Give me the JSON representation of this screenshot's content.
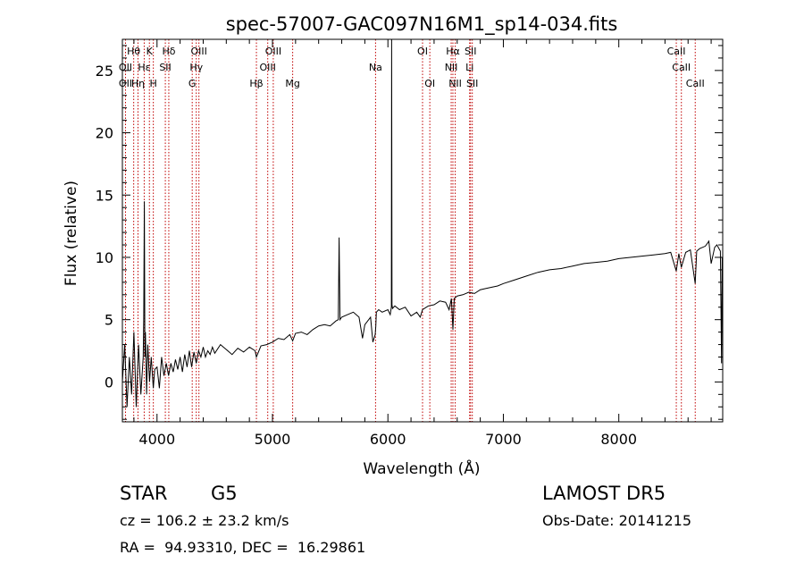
{
  "chart_data": {
    "type": "line",
    "title": "spec-57007-GAC097N16M1_sp14-034.fits",
    "xlabel": "Wavelength (Å)",
    "ylabel": "Flux (relative)",
    "xlim": [
      3700,
      8900
    ],
    "ylim": [
      -3.2,
      27.5
    ],
    "xticks": [
      4000,
      5000,
      6000,
      7000,
      8000
    ],
    "yticks": [
      0,
      5,
      10,
      15,
      20,
      25
    ],
    "grid": false,
    "line_color": "#000000",
    "marker_line_color": "#c00000",
    "lines": [
      {
        "label": "Hθ",
        "x": 3798,
        "row": 0
      },
      {
        "label": "OII",
        "x": 3727,
        "row": 1
      },
      {
        "label": "OII",
        "x": 3727,
        "row": 2
      },
      {
        "label": "Hε",
        "x": 3889,
        "row": 1
      },
      {
        "label": "Hη",
        "x": 3835,
        "row": 2
      },
      {
        "label": "K",
        "x": 3934,
        "row": 0
      },
      {
        "label": "H",
        "x": 3968,
        "row": 2
      },
      {
        "label": "Hδ",
        "x": 4102,
        "row": 0
      },
      {
        "label": "SII",
        "x": 4072,
        "row": 1
      },
      {
        "label": "OIII",
        "x": 4363,
        "row": 0
      },
      {
        "label": "Hγ",
        "x": 4340,
        "row": 1
      },
      {
        "label": "G",
        "x": 4305,
        "row": 2
      },
      {
        "label": "OIII",
        "x": 5007,
        "row": 0
      },
      {
        "label": "OIII",
        "x": 4959,
        "row": 1
      },
      {
        "label": "Hβ",
        "x": 4861,
        "row": 2
      },
      {
        "label": "Mg",
        "x": 5175,
        "row": 2
      },
      {
        "label": "Na",
        "x": 5893,
        "row": 1
      },
      {
        "label": "OI",
        "x": 6300,
        "row": 0
      },
      {
        "label": "OI",
        "x": 6363,
        "row": 2
      },
      {
        "label": "Hα",
        "x": 6563,
        "row": 0
      },
      {
        "label": "NII",
        "x": 6548,
        "row": 1
      },
      {
        "label": "NII",
        "x": 6583,
        "row": 2
      },
      {
        "label": "SII",
        "x": 6716,
        "row": 0
      },
      {
        "label": "Li",
        "x": 6708,
        "row": 1
      },
      {
        "label": "SII",
        "x": 6731,
        "row": 2
      },
      {
        "label": "CaII",
        "x": 8498,
        "row": 0
      },
      {
        "label": "CaII",
        "x": 8542,
        "row": 1
      },
      {
        "label": "CaII",
        "x": 8662,
        "row": 2
      }
    ],
    "series": [
      {
        "x": [
          3700,
          3720,
          3740,
          3760,
          3780,
          3800,
          3820,
          3840,
          3860,
          3880,
          3885,
          3890,
          3895,
          3900,
          3910,
          3920,
          3935,
          3950,
          3968,
          3980,
          4000,
          4020,
          4040,
          4060,
          4080,
          4100,
          4120,
          4140,
          4160,
          4180,
          4200,
          4220,
          4240,
          4260,
          4280,
          4300,
          4320,
          4340,
          4360,
          4380,
          4400,
          4420,
          4440,
          4460,
          4480,
          4500,
          4550,
          4600,
          4650,
          4700,
          4750,
          4800,
          4850,
          4861,
          4900,
          4950,
          5000,
          5050,
          5100,
          5150,
          5175,
          5200,
          5250,
          5300,
          5350,
          5400,
          5450,
          5500,
          5550,
          5570,
          5577,
          5585,
          5600,
          5650,
          5700,
          5750,
          5780,
          5800,
          5850,
          5870,
          5890,
          5895,
          5900,
          5920,
          5950,
          6000,
          6020,
          6030,
          6032,
          6035,
          6040,
          6060,
          6100,
          6150,
          6200,
          6250,
          6280,
          6300,
          6350,
          6400,
          6450,
          6500,
          6530,
          6550,
          6563,
          6575,
          6600,
          6650,
          6700,
          6750,
          6800,
          6850,
          6900,
          6950,
          7000,
          7100,
          7200,
          7300,
          7400,
          7500,
          7600,
          7700,
          7800,
          7900,
          8000,
          8100,
          8200,
          8300,
          8400,
          8450,
          8498,
          8520,
          8542,
          8580,
          8620,
          8662,
          8675,
          8700,
          8750,
          8780,
          8800,
          8830,
          8850,
          8880,
          8890,
          8895
        ],
        "y": [
          0,
          3,
          -2,
          2,
          -1,
          4,
          -2,
          3,
          -1,
          2,
          5,
          14.5,
          2,
          4,
          -1,
          3,
          0,
          2,
          -0.5,
          1,
          1.2,
          -0.5,
          2,
          0.5,
          1.5,
          0.5,
          1.5,
          0.8,
          1.8,
          1,
          2,
          0.8,
          2.2,
          1.2,
          2.5,
          1.2,
          2.4,
          1.5,
          2.5,
          2,
          2.8,
          2,
          2.5,
          2.2,
          2.8,
          2.3,
          3,
          2.6,
          2.2,
          2.7,
          2.4,
          2.8,
          2.5,
          2,
          2.9,
          3,
          3.2,
          3.5,
          3.4,
          3.8,
          3.3,
          3.9,
          4,
          3.8,
          4.2,
          4.5,
          4.6,
          4.5,
          4.9,
          5,
          11.6,
          5,
          5.2,
          5.4,
          5.6,
          5.2,
          3.5,
          4.6,
          5.2,
          3.2,
          3.8,
          4.5,
          5.6,
          5.8,
          5.6,
          5.8,
          5.4,
          6,
          27.5,
          6.2,
          5.9,
          6.1,
          5.8,
          6,
          5.3,
          5.6,
          5.2,
          5.8,
          6.1,
          6.2,
          6.5,
          6.4,
          5.8,
          6.7,
          4.2,
          6.7,
          6.9,
          7,
          7.2,
          7.1,
          7.4,
          7.5,
          7.6,
          7.7,
          7.9,
          8.2,
          8.5,
          8.8,
          9,
          9.1,
          9.3,
          9.5,
          9.6,
          9.7,
          9.9,
          10,
          10.1,
          10.2,
          10.3,
          10.4,
          8.9,
          10.3,
          9.2,
          10.4,
          10.6,
          7.9,
          10.5,
          10.7,
          10.9,
          11.3,
          9.5,
          10.8,
          11,
          10.5,
          1.5,
          10
        ]
      }
    ]
  },
  "info": {
    "object_class": "STAR",
    "subclass": "G5",
    "survey": "LAMOST DR5",
    "cz": "cz = 106.2 ± 23.2 km/s",
    "obs_date": "Obs-Date: 20141215",
    "coords": "RA =  94.93310, DEC =  16.29861"
  }
}
